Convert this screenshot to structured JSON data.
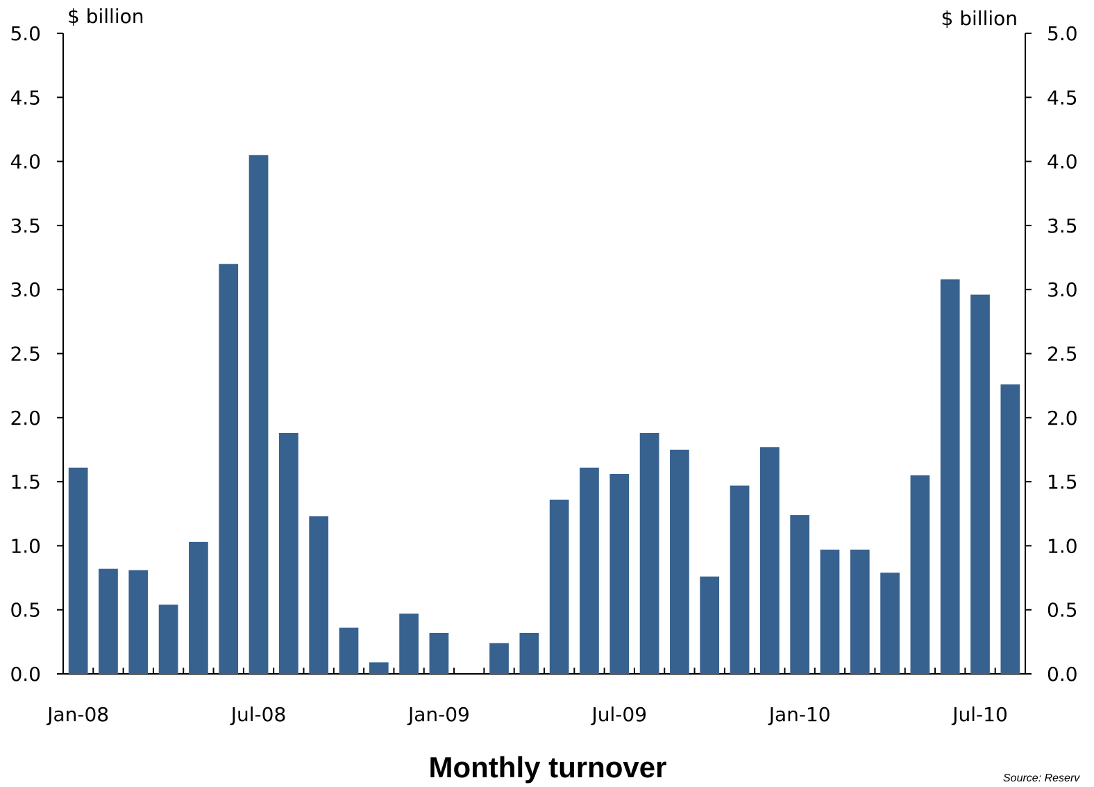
{
  "chart_data": {
    "type": "bar",
    "title": "Monthly turnover",
    "unit_left": "$ billion",
    "unit_right": "$ billion",
    "source": "Source: Reserv",
    "bar_color": "#37618F",
    "ylim": [
      0,
      5
    ],
    "y_ticks": [
      "0.0",
      "0.5",
      "1.0",
      "1.5",
      "2.0",
      "2.5",
      "3.0",
      "3.5",
      "4.0",
      "4.5",
      "5.0"
    ],
    "x_tick_labels": [
      "Jan-08",
      "Jul-08",
      "Jan-09",
      "Jul-09",
      "Jan-10",
      "Jul-10"
    ],
    "categories": [
      "Jan-08",
      "Feb-08",
      "Mar-08",
      "Apr-08",
      "May-08",
      "Jun-08",
      "Jul-08",
      "Aug-08",
      "Sep-08",
      "Oct-08",
      "Nov-08",
      "Dec-08",
      "Jan-09",
      "Feb-09",
      "Mar-09",
      "Apr-09",
      "May-09",
      "Jun-09",
      "Jul-09",
      "Aug-09",
      "Sep-09",
      "Oct-09",
      "Nov-09",
      "Dec-09",
      "Jan-10",
      "Feb-10",
      "Mar-10",
      "Apr-10",
      "May-10",
      "Jun-10",
      "Jul-10",
      "Aug-10"
    ],
    "values": [
      1.61,
      0.82,
      0.81,
      0.54,
      1.03,
      3.2,
      4.05,
      1.88,
      1.23,
      0.36,
      0.09,
      0.47,
      0.32,
      0.0,
      0.24,
      0.32,
      1.36,
      1.61,
      1.56,
      1.88,
      1.75,
      0.76,
      1.47,
      1.77,
      1.24,
      0.97,
      0.97,
      0.79,
      1.55,
      3.08,
      2.96,
      2.26
    ]
  }
}
